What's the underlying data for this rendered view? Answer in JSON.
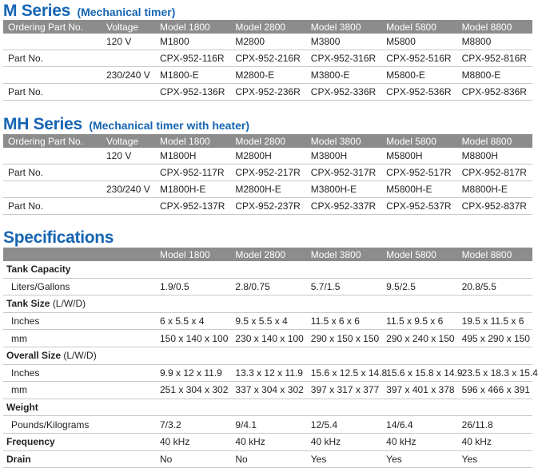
{
  "m_series": {
    "title": "M Series",
    "subtitle": "(Mechanical timer)",
    "headers": [
      "Ordering Part No.",
      "Voltage",
      "Model 1800",
      "Model 2800",
      "Model 3800",
      "Model 5800",
      "Model 8800"
    ],
    "rows": [
      [
        "",
        "120 V",
        "M1800",
        "M2800",
        "M3800",
        "M5800",
        "M8800"
      ],
      [
        "Part No.",
        "",
        "CPX-952-116R",
        "CPX-952-216R",
        "CPX-952-316R",
        "CPX-952-516R",
        "CPX-952-816R"
      ],
      [
        "",
        "230/240 V",
        "M1800-E",
        "M2800-E",
        "M3800-E",
        "M5800-E",
        "M8800-E"
      ],
      [
        "Part No.",
        "",
        "CPX-952-136R",
        "CPX-952-236R",
        "CPX-952-336R",
        "CPX-952-536R",
        "CPX-952-836R"
      ]
    ]
  },
  "mh_series": {
    "title": "MH Series",
    "subtitle": "(Mechanical timer with heater)",
    "headers": [
      "Ordering Part No.",
      "Voltage",
      "Model 1800",
      "Model 2800",
      "Model 3800",
      "Model 5800",
      "Model 8800"
    ],
    "rows": [
      [
        "",
        "120 V",
        "M1800H",
        "M2800H",
        "M3800H",
        "M5800H",
        "M8800H"
      ],
      [
        "Part No.",
        "",
        "CPX-952-117R",
        "CPX-952-217R",
        "CPX-952-317R",
        "CPX-952-517R",
        "CPX-952-817R"
      ],
      [
        "",
        "230/240 V",
        "M1800H-E",
        "M2800H-E",
        "M3800H-E",
        "M5800H-E",
        "M8800H-E"
      ],
      [
        "Part No.",
        "",
        "CPX-952-137R",
        "CPX-952-237R",
        "CPX-952-337R",
        "CPX-952-537R",
        "CPX-952-837R"
      ]
    ]
  },
  "specifications": {
    "title": "Specifications",
    "headers": [
      "Model 1800",
      "Model 2800",
      "Model 3800",
      "Model 5800",
      "Model 8800"
    ],
    "rows": [
      {
        "kind": "group",
        "label": "Tank Capacity",
        "unit": ""
      },
      {
        "kind": "data",
        "label": "Liters/Gallons",
        "values": [
          "1.9/0.5",
          "2.8/0.75",
          "5.7/1.5",
          "9.5/2.5",
          "20.8/5.5"
        ]
      },
      {
        "kind": "group",
        "label": "Tank Size",
        "unit": "(L/W/D)"
      },
      {
        "kind": "data",
        "label": "Inches",
        "values": [
          "6 x 5.5 x 4",
          "9.5 x 5.5 x 4",
          "11.5 x 6 x 6",
          "11.5 x 9.5 x 6",
          "19.5 x 11.5 x 6"
        ]
      },
      {
        "kind": "data",
        "label": "mm",
        "values": [
          "150 x 140 x 100",
          "230 x 140 x 100",
          "290 x 150 x 150",
          "290 x 240 x 150",
          "495 x 290 x 150"
        ]
      },
      {
        "kind": "group",
        "label": "Overall Size",
        "unit": "(L/W/D)"
      },
      {
        "kind": "data",
        "label": "Inches",
        "values": [
          "9.9 x 12 x 11.9",
          "13.3 x 12 x 11.9",
          "15.6 x 12.5 x 14.8",
          "15.6 x 15.8 x 14.9",
          "23.5 x 18.3 x 15.4"
        ]
      },
      {
        "kind": "data",
        "label": "mm",
        "values": [
          "251 x 304 x 302",
          "337 x 304 x 302",
          "397 x 317 x 377",
          "397 x 401 x 378",
          "596 x 466 x 391"
        ]
      },
      {
        "kind": "group",
        "label": "Weight",
        "unit": ""
      },
      {
        "kind": "data",
        "label": "Pounds/Kilograms",
        "values": [
          "7/3.2",
          "9/4.1",
          "12/5.4",
          "14/6.4",
          "26/11.8"
        ]
      },
      {
        "kind": "inline",
        "label": "Frequency",
        "values": [
          "40 kHz",
          "40 kHz",
          "40 kHz",
          "40 kHz",
          "40 kHz"
        ]
      },
      {
        "kind": "inline",
        "label": "Drain",
        "values": [
          "No",
          "No",
          "Yes",
          "Yes",
          "Yes"
        ]
      }
    ]
  }
}
